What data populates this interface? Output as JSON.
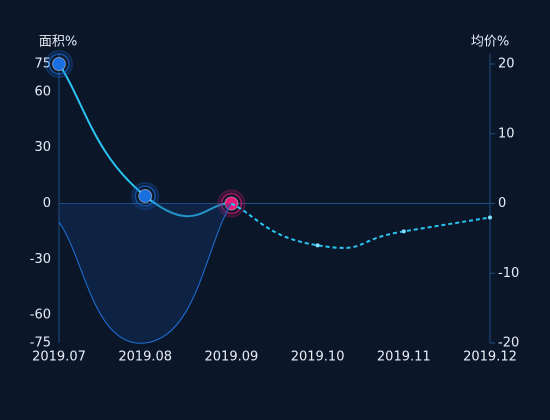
{
  "chart_data": {
    "type": "line",
    "categories": [
      "2019.07",
      "2019.08",
      "2019.09",
      "2019.10",
      "2019.11",
      "2019.12"
    ],
    "y_axis_label": "面积%",
    "y2_axis_label": "均价%",
    "ylim": [
      -75,
      75
    ],
    "yticks": [
      -75,
      -60,
      -30,
      0,
      30,
      60,
      75
    ],
    "y2lim": [
      -20,
      20
    ],
    "y2ticks": [
      -20,
      -10,
      0,
      10,
      20
    ],
    "series": [
      {
        "color": "#2bc4f2",
        "values": [
          75,
          4,
          0,
          null,
          null,
          null
        ],
        "marker_colors": [
          "#1a6fe0",
          "#1a6fe0",
          "#e6177a"
        ]
      },
      {
        "color": "#1f6fd6",
        "values": [
          -10,
          -75,
          0,
          null,
          null,
          null
        ],
        "area": true
      },
      {
        "color": "#2bc4f2",
        "values": [
          null,
          null,
          0,
          -6,
          -4,
          -2
        ],
        "axis": "y2",
        "dashed": true
      }
    ]
  }
}
